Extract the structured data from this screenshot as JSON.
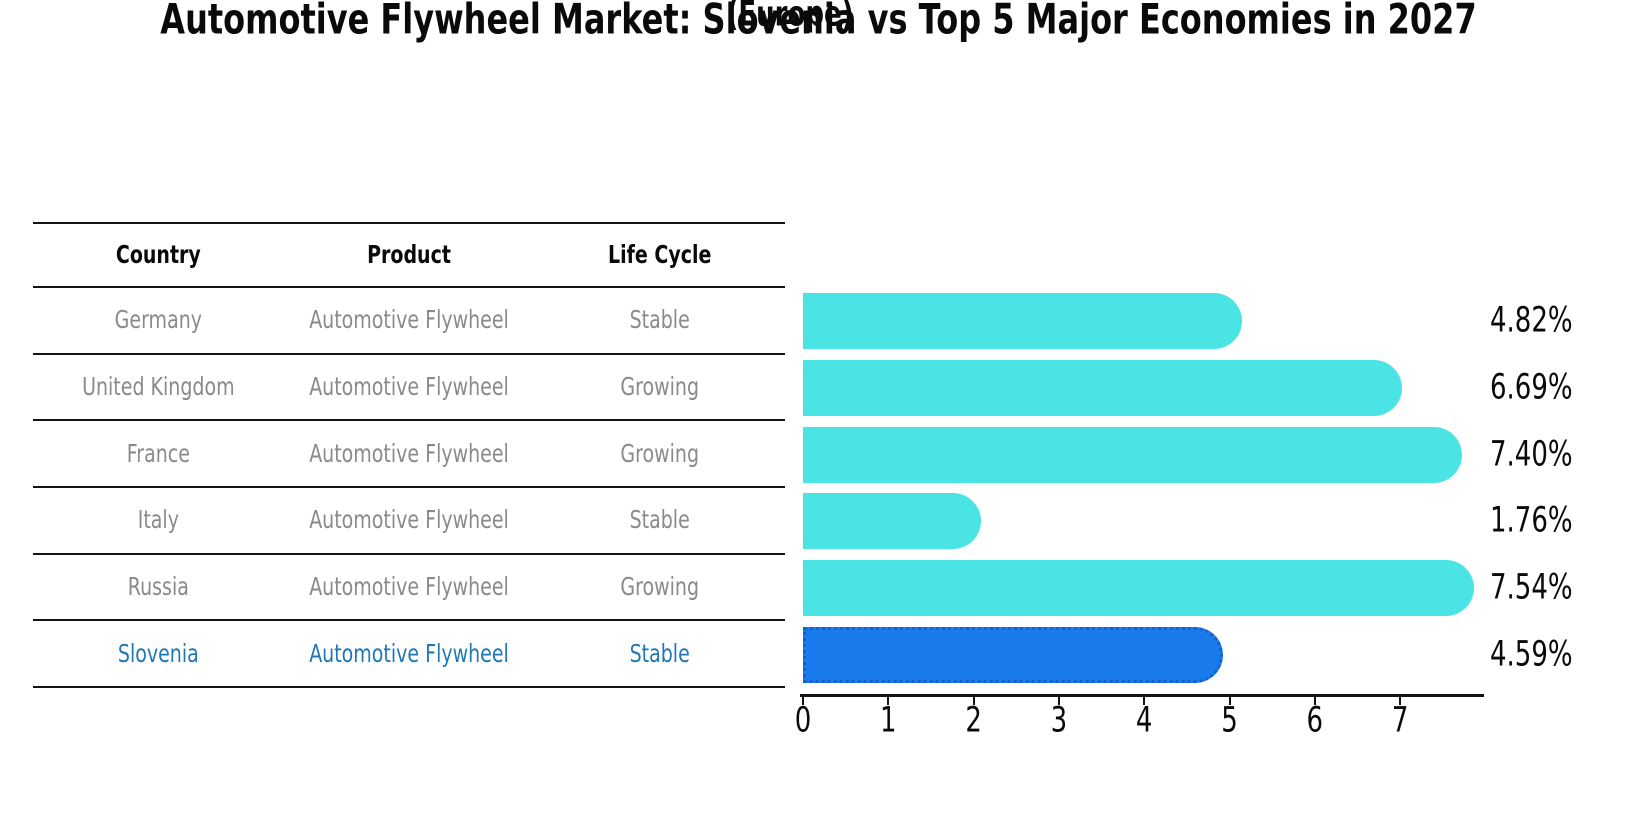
{
  "title": "Automotive Flywheel Market: Slovenia vs Top 5 Major Economies in 2027",
  "subtitle": "(Europe)",
  "table": {
    "headers": [
      "Country",
      "Product",
      "Life Cycle"
    ],
    "rows": [
      {
        "country": "Germany",
        "product": "Automotive Flywheel",
        "life_cycle": "Stable",
        "highlight": false
      },
      {
        "country": "United Kingdom",
        "product": "Automotive Flywheel",
        "life_cycle": "Growing",
        "highlight": false
      },
      {
        "country": "France",
        "product": "Automotive Flywheel",
        "life_cycle": "Growing",
        "highlight": false
      },
      {
        "country": "Italy",
        "product": "Automotive Flywheel",
        "life_cycle": "Stable",
        "highlight": false
      },
      {
        "country": "Russia",
        "product": "Automotive Flywheel",
        "life_cycle": "Growing",
        "highlight": false
      },
      {
        "country": "Slovenia",
        "product": "Automotive Flywheel",
        "life_cycle": "Stable",
        "highlight": true
      }
    ]
  },
  "chart_data": {
    "type": "bar",
    "orientation": "horizontal",
    "title": "Automotive Flywheel Market: Slovenia vs Top 5 Major Economies in 2027",
    "subtitle": "(Europe)",
    "categories": [
      "Germany",
      "United Kingdom",
      "France",
      "Italy",
      "Russia",
      "Slovenia"
    ],
    "values": [
      4.82,
      6.69,
      7.4,
      1.76,
      7.54,
      4.59
    ],
    "value_labels": [
      "4.82%",
      "6.69%",
      "7.40%",
      "1.76%",
      "7.54%",
      "4.59%"
    ],
    "xlabel": "",
    "ylabel": "",
    "xticks": [
      0,
      1,
      2,
      3,
      4,
      5,
      6,
      7
    ],
    "xlim": [
      0,
      7.97
    ],
    "grid": false,
    "legend": null,
    "highlight_index": 5,
    "bar_color": "#4BE4E4",
    "highlight_bar_color": "#1A7CEC",
    "highlight_border_color": "#155FD3"
  },
  "colors": {
    "title_text": "#0a0a0a",
    "table_text": "#8a8a8a",
    "highlight_text": "#1F77B4",
    "line": "#141414",
    "background": "#ffffff"
  }
}
